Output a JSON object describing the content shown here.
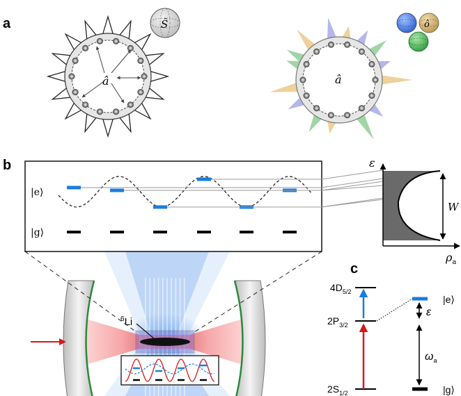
{
  "panels": {
    "a": {
      "label": "a",
      "left_operator": "â",
      "spin_operator": "Ŝ",
      "right_operator": "â",
      "bath_operator": "ô",
      "bath_sphere_colors": [
        "#3b6fd8",
        "#c9a45a",
        "#3fb24a"
      ],
      "spike_colors": [
        "#9aa0e6",
        "#e9c27a",
        "#7fc98a"
      ]
    },
    "b": {
      "label": "b",
      "state_excited": "|e⟩",
      "state_ground": "|g⟩",
      "axis_energy": "ε",
      "axis_density": "ρ",
      "axis_density_subscript": "a",
      "width_label": "W",
      "atom_label_sup": "6",
      "atom_label": "Li",
      "colors": {
        "site": "#1a7de0",
        "probe": "#e02020",
        "mirror": "#2a8a3a",
        "lattice_beam": "#7fb2ee",
        "cavity_mode": "#f26a6a"
      }
    },
    "c": {
      "label": "c",
      "level_4d": "4D",
      "level_4d_sub": "5/2",
      "level_2p": "2P",
      "level_2p_sub": "3/2",
      "level_2s": "2S",
      "level_2s_sub": "1/2",
      "state_e": "|e⟩",
      "state_g": "|g⟩",
      "epsilon": "ε",
      "omega": "ω",
      "omega_sub": "a",
      "colors": {
        "blue_arrow": "#1a7de0",
        "red_arrow": "#d81818"
      }
    }
  }
}
